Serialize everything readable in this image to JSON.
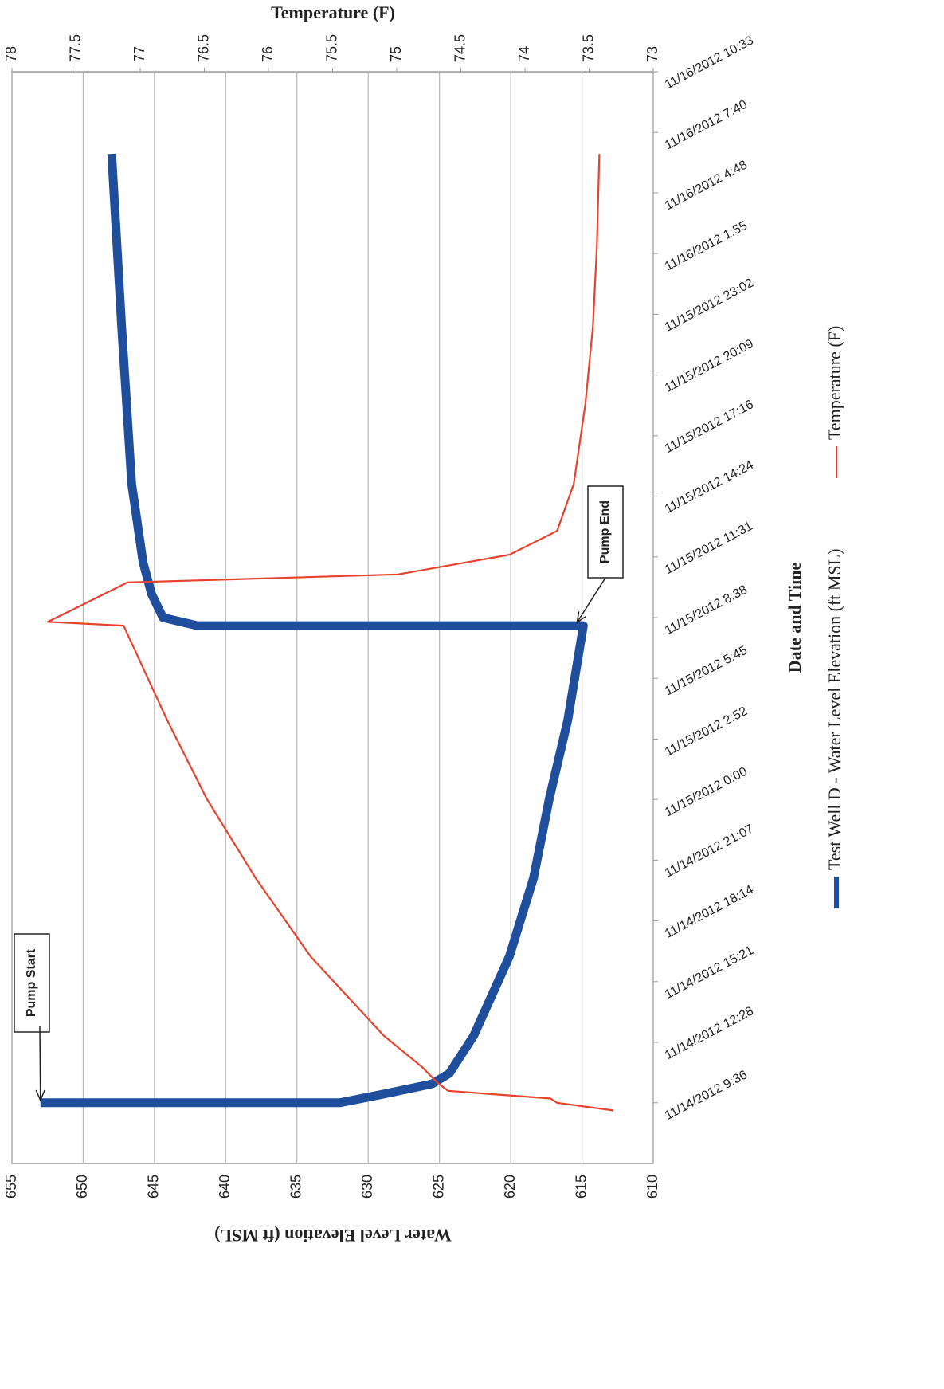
{
  "chart_data": {
    "type": "line",
    "x_title": "Date and Time",
    "y_title": "Water Level Elevation (ft MSL)",
    "y2_title": "Temperature (F)",
    "xlim": [
      "2012-11-14T06:43",
      "2012-11-16T10:33"
    ],
    "xticks": [
      {
        "value": "2012-11-14T09:36",
        "label": "11/14/2012 9:36"
      },
      {
        "value": "2012-11-14T12:28",
        "label": "11/14/2012 12:28"
      },
      {
        "value": "2012-11-14T15:21",
        "label": "11/14/2012 15:21"
      },
      {
        "value": "2012-11-14T18:14",
        "label": "11/14/2012 18:14"
      },
      {
        "value": "2012-11-14T21:07",
        "label": "11/14/2012 21:07"
      },
      {
        "value": "2012-11-15T00:00",
        "label": "11/15/2012 0:00"
      },
      {
        "value": "2012-11-15T02:52",
        "label": "11/15/2012 2:52"
      },
      {
        "value": "2012-11-15T05:45",
        "label": "11/15/2012 5:45"
      },
      {
        "value": "2012-11-15T08:38",
        "label": "11/15/2012 8:38"
      },
      {
        "value": "2012-11-15T11:31",
        "label": "11/15/2012 11:31"
      },
      {
        "value": "2012-11-15T14:24",
        "label": "11/15/2012 14:24"
      },
      {
        "value": "2012-11-15T17:16",
        "label": "11/15/2012 17:16"
      },
      {
        "value": "2012-11-15T20:09",
        "label": "11/15/2012 20:09"
      },
      {
        "value": "2012-11-15T23:02",
        "label": "11/15/2012 23:02"
      },
      {
        "value": "2012-11-16T01:55",
        "label": "11/16/2012 1:55"
      },
      {
        "value": "2012-11-16T04:48",
        "label": "11/16/2012 4:48"
      },
      {
        "value": "2012-11-16T07:40",
        "label": "11/16/2012 7:40"
      },
      {
        "value": "2012-11-16T10:33",
        "label": "11/16/2012 10:33"
      }
    ],
    "ylim": [
      610,
      655
    ],
    "yticks": [
      610,
      615,
      620,
      625,
      630,
      635,
      640,
      645,
      650,
      655
    ],
    "y2lim": [
      73,
      78
    ],
    "y2ticks": [
      73,
      73.5,
      74,
      74.5,
      75,
      75.5,
      76,
      76.5,
      77,
      77.5,
      78
    ],
    "grid": true,
    "legend": "bottom",
    "series": [
      {
        "name": "Test Well D - Water Level Elevation (ft MSL)",
        "color": "#1f4e9c",
        "x": [
          "2012-11-14T09:36",
          "2012-11-14T09:36",
          "2012-11-14T10:00",
          "2012-11-14T10:30",
          "2012-11-14T11:00",
          "2012-11-14T12:47",
          "2012-11-14T16:32",
          "2012-11-14T20:16",
          "2012-11-15T00:01",
          "2012-11-15T03:46",
          "2012-11-15T08:15",
          "2012-11-15T08:15",
          "2012-11-15T08:38",
          "2012-11-15T09:45",
          "2012-11-15T11:15",
          "2012-11-15T14:59",
          "2012-11-15T22:28",
          "2012-11-16T06:39"
        ],
        "values": [
          653,
          632,
          629,
          625.5,
          624.3,
          622.6,
          620.1,
          618.4,
          617.3,
          616,
          614.9,
          642,
          644.4,
          645.2,
          645.8,
          646.6,
          647.3,
          648
        ]
      },
      {
        "name": "Temperature (F)",
        "color": "#e8412c",
        "axis": "y2",
        "x": [
          "2012-11-14T09:14",
          "2012-11-14T09:36",
          "2012-11-14T09:48",
          "2012-11-14T10:10",
          "2012-11-14T10:32",
          "2012-11-14T11:17",
          "2012-11-14T12:47",
          "2012-11-14T16:32",
          "2012-11-14T20:16",
          "2012-11-15T00:01",
          "2012-11-15T03:46",
          "2012-11-15T08:15",
          "2012-11-15T08:26",
          "2012-11-15T09:00",
          "2012-11-15T10:18",
          "2012-11-15T10:41",
          "2012-11-15T11:37",
          "2012-11-15T12:45",
          "2012-11-15T14:59",
          "2012-11-15T18:44",
          "2012-11-15T22:28",
          "2012-11-16T02:13",
          "2012-11-16T06:39"
        ],
        "values": [
          73.31,
          73.75,
          73.8,
          74.6,
          74.68,
          74.8,
          75.1,
          75.67,
          76.1,
          76.48,
          76.79,
          77.13,
          77.72,
          77.53,
          77.1,
          74.99,
          74.12,
          73.75,
          73.62,
          73.53,
          73.47,
          73.44,
          73.42
        ]
      }
    ],
    "annotations": [
      {
        "text": "Pump Start"
      },
      {
        "text": "Pump End"
      }
    ]
  }
}
